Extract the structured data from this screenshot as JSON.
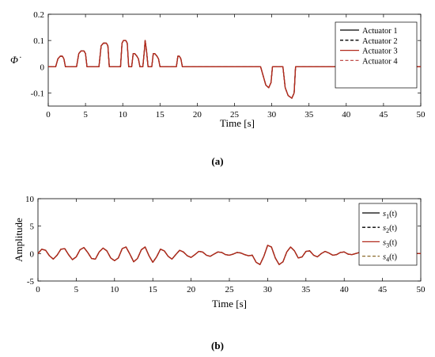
{
  "chart_data": [
    {
      "type": "line",
      "title": "",
      "panel_label": "(a)",
      "xlabel": "Time [s]",
      "ylabel": "Φ̇",
      "xlim": [
        0,
        50
      ],
      "ylim": [
        -0.15,
        0.2
      ],
      "xticks": [
        "0",
        "5",
        "10",
        "15",
        "20",
        "25",
        "30",
        "35",
        "40",
        "45",
        "50"
      ],
      "yticks": [
        "0.2",
        "0.1",
        "0",
        "-0.1"
      ],
      "legend_position": "top-right",
      "grid": false,
      "series": [
        {
          "name": "Actuator 1",
          "color": "#000000",
          "dash": "solid",
          "x": [
            0,
            1.0,
            1.3,
            1.6,
            1.9,
            2.1,
            2.3,
            3.8,
            4.1,
            4.4,
            4.8,
            5.0,
            5.2,
            6.8,
            7.1,
            7.4,
            7.8,
            8.0,
            8.2,
            9.7,
            9.9,
            10.1,
            10.4,
            10.6,
            10.8,
            11.2,
            11.4,
            11.6,
            11.9,
            12.1,
            12.3,
            12.7,
            12.9,
            13.0,
            13.2,
            13.4,
            13.9,
            14.1,
            14.3,
            14.6,
            14.8,
            15.0,
            17.2,
            17.4,
            17.6,
            17.8,
            18.0,
            28.5,
            28.8,
            29.2,
            29.6,
            29.9,
            30.1,
            31.5,
            31.8,
            32.2,
            32.7,
            33.0,
            33.2,
            50
          ],
          "y": [
            0,
            0,
            0.03,
            0.04,
            0.04,
            0.03,
            0,
            0,
            0.05,
            0.06,
            0.06,
            0.05,
            0,
            0,
            0.08,
            0.09,
            0.09,
            0.08,
            0,
            0,
            0.09,
            0.1,
            0.1,
            0.09,
            0,
            0,
            0.05,
            0.05,
            0.04,
            0.03,
            0,
            0,
            0.06,
            0.1,
            0.06,
            0,
            0,
            0.05,
            0.05,
            0.04,
            0.03,
            0,
            0,
            0.04,
            0.04,
            0.03,
            0,
            0,
            -0.03,
            -0.07,
            -0.08,
            -0.06,
            0,
            0,
            -0.08,
            -0.11,
            -0.12,
            -0.1,
            0,
            0
          ]
        },
        {
          "name": "Actuator 2",
          "color": "#000000",
          "dash": "dashed",
          "same_as": 0
        },
        {
          "name": "Actuator 3",
          "color": "#b22a1c",
          "dash": "solid",
          "same_as": 0
        },
        {
          "name": "Actuator 4",
          "color": "#c0504d",
          "dash": "dashed",
          "same_as": 0
        }
      ]
    },
    {
      "type": "line",
      "title": "",
      "panel_label": "(b)",
      "xlabel": "Time [s]",
      "ylabel": "Amplitude",
      "xlim": [
        0,
        50
      ],
      "ylim": [
        -5,
        10
      ],
      "xticks": [
        "0",
        "5",
        "10",
        "15",
        "20",
        "25",
        "30",
        "35",
        "40",
        "45",
        "50"
      ],
      "yticks": [
        "10",
        "5",
        "0",
        "-5"
      ],
      "legend_position": "top-right",
      "grid": false,
      "series": [
        {
          "name": "s1(t)",
          "sub": "1",
          "color": "#000000",
          "dash": "solid",
          "x": [
            0,
            0.5,
            1,
            1.5,
            2,
            2.5,
            3,
            3.5,
            4,
            4.5,
            5,
            5.5,
            6,
            6.5,
            7,
            7.5,
            8,
            8.5,
            9,
            9.5,
            10,
            10.5,
            11,
            11.5,
            12,
            12.5,
            13,
            13.5,
            14,
            14.5,
            15,
            15.5,
            16,
            16.5,
            17,
            17.5,
            18,
            18.5,
            19,
            19.5,
            20,
            20.5,
            21,
            21.5,
            22,
            22.5,
            23,
            23.5,
            24,
            24.5,
            25,
            25.5,
            26,
            26.5,
            27,
            27.5,
            28,
            28.5,
            29,
            29.5,
            30,
            30.5,
            31,
            31.5,
            32,
            32.5,
            33,
            33.5,
            34,
            34.5,
            35,
            35.5,
            36,
            36.5,
            37,
            37.5,
            38,
            38.5,
            39,
            39.5,
            40,
            40.5,
            41,
            41.5,
            42,
            42.5,
            43,
            43.5,
            44,
            44.5,
            45,
            45.5,
            46,
            46.5,
            47,
            47.5,
            48,
            48.5,
            49,
            49.5,
            50
          ],
          "y": [
            0,
            0.8,
            0.6,
            -0.4,
            -1,
            -0.3,
            0.8,
            0.9,
            -0.2,
            -1.1,
            -0.6,
            0.7,
            1.1,
            0.2,
            -0.9,
            -1,
            0.3,
            1,
            0.5,
            -0.8,
            -1.3,
            -0.8,
            0.9,
            1.2,
            -0.1,
            -1.5,
            -0.9,
            0.7,
            1.2,
            -0.4,
            -1.6,
            -0.6,
            0.8,
            0.5,
            -0.5,
            -1,
            -0.2,
            0.6,
            0.3,
            -0.4,
            -0.7,
            -0.2,
            0.4,
            0.3,
            -0.3,
            -0.5,
            -0.1,
            0.3,
            0.2,
            -0.2,
            -0.3,
            -0.1,
            0.2,
            0.1,
            -0.2,
            -0.4,
            -0.3,
            -1.6,
            -2,
            -0.5,
            1.5,
            1.2,
            -0.8,
            -2,
            -1.5,
            0.3,
            1.2,
            0.5,
            -0.8,
            -0.6,
            0.4,
            0.5,
            -0.3,
            -0.6,
            0,
            0.4,
            0.1,
            -0.3,
            -0.2,
            0.2,
            0.3,
            -0.1,
            -0.2,
            0,
            0.2,
            0.1,
            -0.1,
            -0.1,
            0.1,
            0.1,
            0,
            -0.1,
            0,
            0.1,
            0.1,
            0,
            -0.1,
            0,
            0.1,
            0,
            0
          ]
        },
        {
          "name": "s2(t)",
          "sub": "2",
          "color": "#000000",
          "dash": "dashed",
          "same_as": 0
        },
        {
          "name": "s3(t)",
          "sub": "3",
          "color": "#b22a1c",
          "dash": "solid",
          "same_as": 0
        },
        {
          "name": "s4(t)",
          "sub": "4",
          "color": "#8a6a2a",
          "dash": "dashed",
          "same_as": 0
        }
      ]
    }
  ]
}
